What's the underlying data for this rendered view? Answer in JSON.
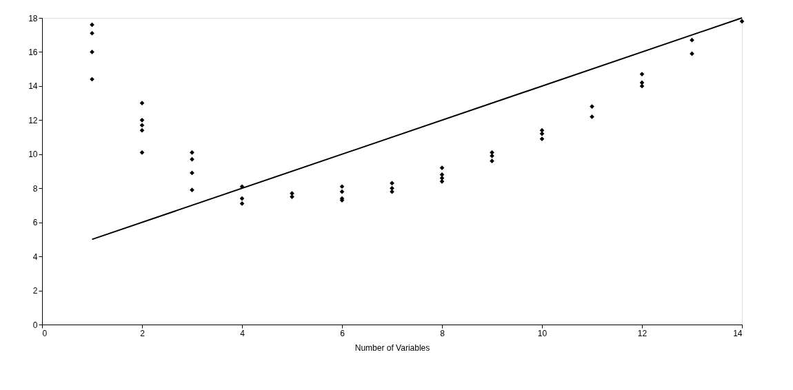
{
  "chart_data": {
    "type": "scatter",
    "xlabel": "Number of Variables",
    "xlim": [
      0,
      14
    ],
    "ylim": [
      0,
      18
    ],
    "xticks": [
      0,
      2,
      4,
      6,
      8,
      10,
      12,
      14
    ],
    "yticks": [
      0,
      2,
      4,
      6,
      8,
      10,
      12,
      14,
      16,
      18
    ],
    "grid": false,
    "marker": "diamond",
    "series": [
      {
        "type": "scatter",
        "color": "#000000",
        "x": [
          1,
          1,
          1,
          1,
          2,
          2,
          2,
          2,
          2,
          3,
          3,
          3,
          3,
          4,
          4,
          4,
          5,
          5,
          6,
          6,
          6,
          6,
          7,
          7,
          7,
          8,
          8,
          8,
          8,
          9,
          9,
          9,
          10,
          10,
          10,
          11,
          11,
          12,
          12,
          12,
          13,
          13,
          14
        ],
        "values": [
          17.6,
          17.1,
          16.0,
          14.4,
          13.0,
          12.0,
          11.7,
          11.4,
          10.1,
          10.1,
          9.7,
          8.9,
          7.9,
          8.1,
          7.4,
          7.1,
          7.7,
          7.5,
          8.1,
          7.8,
          7.4,
          7.3,
          8.3,
          8.0,
          7.8,
          9.2,
          8.8,
          8.6,
          8.4,
          10.1,
          9.9,
          9.6,
          11.4,
          11.2,
          10.9,
          12.8,
          12.2,
          14.7,
          14.2,
          14.0,
          16.7,
          15.9,
          17.8
        ]
      },
      {
        "type": "line",
        "color": "#000000",
        "x": [
          1,
          14
        ],
        "values": [
          5,
          18
        ],
        "marker": "none",
        "line_style": "solid"
      }
    ]
  }
}
